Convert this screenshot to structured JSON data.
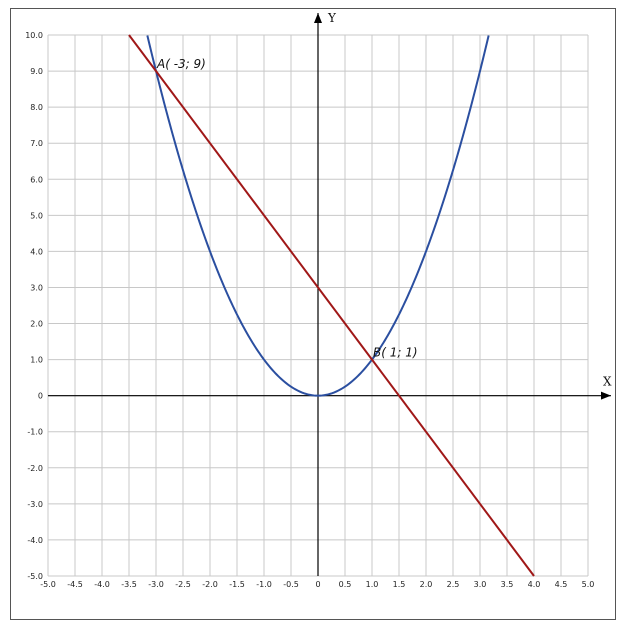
{
  "chart_data": {
    "type": "line",
    "xlabel": "X",
    "ylabel": "Y",
    "xlim": [
      -5,
      5
    ],
    "ylim": [
      -5,
      10
    ],
    "x_step": 0.5,
    "y_step": 1,
    "grid": true,
    "x_tick_labels": [
      "-5.0",
      "-4.5",
      "-4.0",
      "-3.5",
      "-3.0",
      "-2.5",
      "-2.0",
      "-1.5",
      "-1.0",
      "-0.5",
      "0",
      "0.5",
      "1.0",
      "1.5",
      "2.0",
      "2.5",
      "3.0",
      "3.5",
      "4.0",
      "4.5",
      "5.0"
    ],
    "y_tick_labels": [
      "10.0",
      "9.0",
      "8.0",
      "7.0",
      "6.0",
      "5.0",
      "4.0",
      "3.0",
      "2.0",
      "1.0",
      "0",
      "-1.0",
      "-2.0",
      "-3.0",
      "-4.0",
      "-5.0"
    ],
    "series": [
      {
        "kind": "parabola",
        "equation": "y = x^2",
        "color": "#2b4fa0",
        "x": [
          -3.16,
          -3.0,
          -2.75,
          -2.5,
          -2.25,
          -2.0,
          -1.75,
          -1.5,
          -1.25,
          -1.0,
          -0.75,
          -0.5,
          -0.25,
          0,
          0.25,
          0.5,
          0.75,
          1.0,
          1.25,
          1.5,
          1.75,
          2.0,
          2.25,
          2.5,
          2.75,
          3.0,
          3.16
        ],
        "y": [
          10.0,
          9.0,
          7.5625,
          6.25,
          5.0625,
          4.0,
          3.0625,
          2.25,
          1.5625,
          1.0,
          0.5625,
          0.25,
          0.0625,
          0,
          0.0625,
          0.25,
          0.5625,
          1.0,
          1.5625,
          2.25,
          3.0625,
          4.0,
          5.0625,
          6.25,
          7.5625,
          9.0,
          10.0
        ]
      },
      {
        "kind": "line",
        "equation": "y = -2x + 3",
        "color": "#a01818",
        "x": [
          -3.5,
          4.0
        ],
        "y": [
          10.0,
          -5.0
        ]
      }
    ],
    "annotations": [
      {
        "text": "A( -3; 9)",
        "x": -3,
        "y": 9
      },
      {
        "text": "B( 1; 1)",
        "x": 1,
        "y": 1
      }
    ]
  }
}
